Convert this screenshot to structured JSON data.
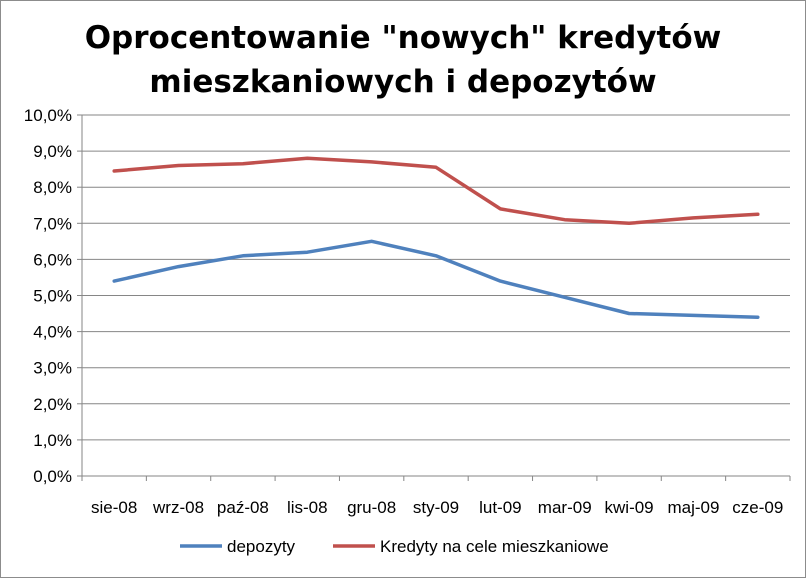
{
  "chart_data": {
    "type": "line",
    "title_lines": [
      "Oprocentowanie \"nowych\" kredytów",
      "mieszkaniowych i depozytów"
    ],
    "categories": [
      "sie-08",
      "wrz-08",
      "paź-08",
      "lis-08",
      "gru-08",
      "sty-09",
      "lut-09",
      "mar-09",
      "kwi-09",
      "maj-09",
      "cze-09"
    ],
    "y_ticks": [
      "0,0%",
      "1,0%",
      "2,0%",
      "3,0%",
      "4,0%",
      "5,0%",
      "6,0%",
      "7,0%",
      "8,0%",
      "9,0%",
      "10,0%"
    ],
    "ylim": [
      0,
      10
    ],
    "grid": true,
    "legend_position": "bottom",
    "series": [
      {
        "name": "depozyty",
        "color": "#4f81bd",
        "values": [
          5.4,
          5.8,
          6.1,
          6.2,
          6.5,
          6.1,
          5.4,
          4.95,
          4.5,
          4.45,
          4.4
        ]
      },
      {
        "name": "Kredyty na cele mieszkaniowe",
        "color": "#c0504d",
        "values": [
          8.45,
          8.6,
          8.65,
          8.8,
          8.7,
          8.55,
          7.4,
          7.1,
          7.0,
          7.15,
          7.25
        ]
      }
    ]
  }
}
